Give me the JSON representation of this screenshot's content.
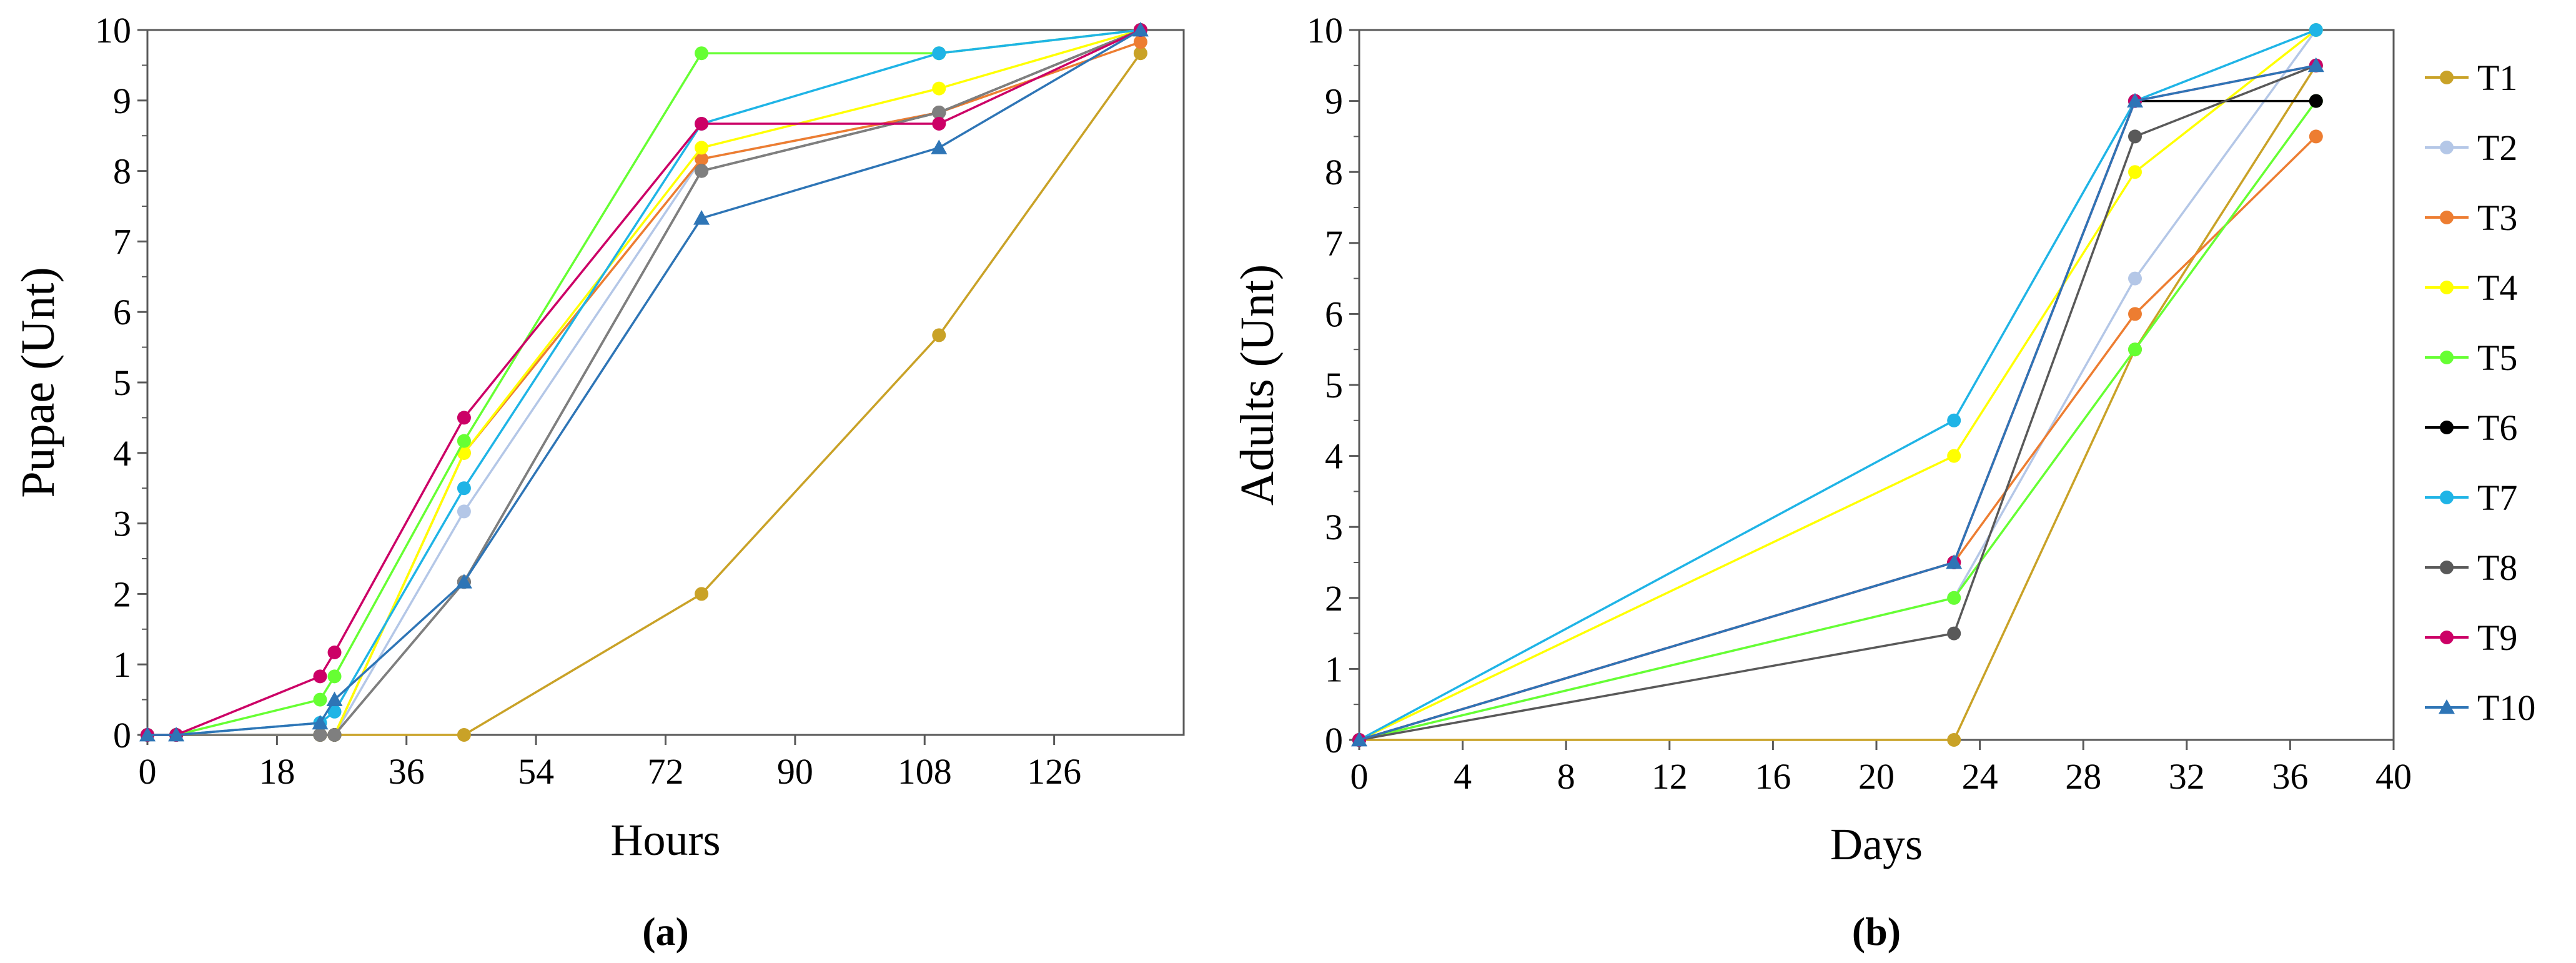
{
  "chart_data": [
    {
      "panel_label": "(a)",
      "type": "line",
      "xlabel": "Hours",
      "ylabel": "Pupae (Unt)",
      "xlim": [
        0,
        144
      ],
      "ylim": [
        0,
        10
      ],
      "xticks": [
        0,
        18,
        36,
        54,
        72,
        90,
        108,
        126
      ],
      "yticks": [
        0,
        1,
        2,
        3,
        4,
        5,
        6,
        7,
        8,
        9,
        10
      ],
      "grid": false,
      "series": [
        {
          "name": "T1",
          "color": "#c9a227",
          "marker": "circle",
          "x": [
            0,
            4,
            24,
            26,
            44,
            77,
            110,
            138
          ],
          "y": [
            0,
            0,
            0,
            0,
            0,
            2,
            5.67,
            9.67
          ]
        },
        {
          "name": "T2",
          "color": "#b4c7e7",
          "marker": "circle",
          "x": [
            0,
            4,
            24,
            26,
            44,
            77,
            110,
            138
          ],
          "y": [
            0,
            0,
            0,
            0,
            3.17,
            8.17,
            8.83,
            10
          ]
        },
        {
          "name": "T3",
          "color": "#ed7d31",
          "marker": "circle",
          "x": [
            0,
            4,
            24,
            26,
            44,
            77,
            110,
            138
          ],
          "y": [
            0,
            0,
            0,
            0,
            4.0,
            8.17,
            8.83,
            9.83
          ]
        },
        {
          "name": "T4",
          "color": "#ffff00",
          "marker": "circle",
          "x": [
            0,
            4,
            24,
            26,
            44,
            77,
            110,
            138
          ],
          "y": [
            0,
            0,
            0,
            0,
            4.0,
            8.33,
            9.17,
            10
          ]
        },
        {
          "name": "T5",
          "color": "#66ff33",
          "marker": "circle",
          "x": [
            0,
            4,
            24,
            26,
            44,
            77,
            110,
            138
          ],
          "y": [
            0,
            0,
            0.5,
            0.83,
            4.17,
            9.67,
            9.67,
            10
          ]
        },
        {
          "name": "T6",
          "color": "#000000",
          "marker": "circle",
          "x": [
            0,
            4,
            24,
            26,
            44,
            77,
            110,
            138
          ],
          "y": [
            0,
            0,
            0,
            0,
            2.17,
            8.0,
            8.83,
            10
          ]
        },
        {
          "name": "T7",
          "color": "#1fb4e6",
          "marker": "circle",
          "x": [
            0,
            4,
            24,
            26,
            44,
            77,
            110,
            138
          ],
          "y": [
            0,
            0,
            0.17,
            0.33,
            3.5,
            8.67,
            9.67,
            10
          ]
        },
        {
          "name": "T8",
          "color": "#7f7f7f",
          "marker": "circle",
          "x": [
            0,
            4,
            24,
            26,
            44,
            77,
            110,
            138
          ],
          "y": [
            0,
            0,
            0,
            0,
            2.17,
            8.0,
            8.83,
            10
          ]
        },
        {
          "name": "T9",
          "color": "#cc0066",
          "marker": "circle",
          "x": [
            0,
            4,
            24,
            26,
            44,
            77,
            110,
            138
          ],
          "y": [
            0,
            0,
            0.83,
            1.17,
            4.5,
            8.67,
            8.67,
            10
          ]
        },
        {
          "name": "T10",
          "color": "#2e75b6",
          "marker": "triangle",
          "x": [
            0,
            4,
            24,
            26,
            44,
            77,
            110,
            138
          ],
          "y": [
            0,
            0,
            0.17,
            0.5,
            2.17,
            7.33,
            8.33,
            10
          ]
        }
      ]
    },
    {
      "panel_label": "(b)",
      "type": "line",
      "xlabel": "Days",
      "ylabel": "Adults (Unt)",
      "xlim": [
        0,
        40
      ],
      "ylim": [
        0,
        10
      ],
      "xticks": [
        0,
        4,
        8,
        12,
        16,
        20,
        24,
        28,
        32,
        36,
        40
      ],
      "yticks": [
        0,
        1,
        2,
        3,
        4,
        5,
        6,
        7,
        8,
        9,
        10
      ],
      "grid": false,
      "legend_position": "right",
      "series": [
        {
          "name": "T1",
          "color": "#c9a227",
          "marker": "circle",
          "x": [
            0,
            23,
            30,
            37
          ],
          "y": [
            0,
            0,
            5.5,
            9.5
          ]
        },
        {
          "name": "T2",
          "color": "#b4c7e7",
          "marker": "circle",
          "x": [
            0,
            23,
            30,
            37
          ],
          "y": [
            0,
            2.0,
            6.5,
            10
          ]
        },
        {
          "name": "T3",
          "color": "#ed7d31",
          "marker": "circle",
          "x": [
            0,
            23,
            30,
            37
          ],
          "y": [
            0,
            2.5,
            6.0,
            8.5
          ]
        },
        {
          "name": "T4",
          "color": "#ffff00",
          "marker": "circle",
          "x": [
            0,
            23,
            30,
            37
          ],
          "y": [
            0,
            4.0,
            8.0,
            10
          ]
        },
        {
          "name": "T5",
          "color": "#66ff33",
          "marker": "circle",
          "x": [
            0,
            23,
            30,
            37
          ],
          "y": [
            0,
            2.0,
            5.5,
            9.0
          ]
        },
        {
          "name": "T6",
          "color": "#000000",
          "marker": "circle",
          "x": [
            0,
            23,
            30,
            37
          ],
          "y": [
            0,
            2.5,
            9.0,
            9.0
          ]
        },
        {
          "name": "T7",
          "color": "#1fb4e6",
          "marker": "circle",
          "x": [
            0,
            23,
            30,
            37
          ],
          "y": [
            0,
            4.5,
            9.0,
            10
          ]
        },
        {
          "name": "T8",
          "color": "#595959",
          "marker": "circle",
          "x": [
            0,
            23,
            30,
            37
          ],
          "y": [
            0,
            1.5,
            8.5,
            9.5
          ]
        },
        {
          "name": "T9",
          "color": "#cc0066",
          "marker": "circle",
          "x": [
            0,
            23,
            30,
            37
          ],
          "y": [
            0,
            2.5,
            9.0,
            9.5
          ]
        },
        {
          "name": "T10",
          "color": "#2e75b6",
          "marker": "triangle",
          "x": [
            0,
            23,
            30,
            37
          ],
          "y": [
            0,
            2.5,
            9.0,
            9.5
          ]
        }
      ]
    }
  ]
}
